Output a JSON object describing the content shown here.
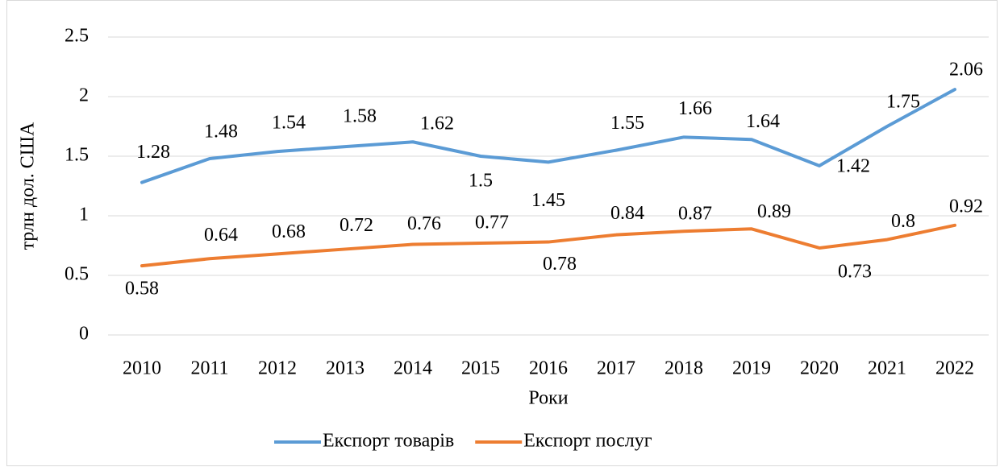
{
  "chart_data": {
    "type": "line",
    "y_label": "трлн дол. США",
    "x_label": "Роки",
    "categories": [
      "2010",
      "2011",
      "2012",
      "2013",
      "2014",
      "2015",
      "2016",
      "2017",
      "2018",
      "2019",
      "2020",
      "2021",
      "2022"
    ],
    "series": [
      {
        "name": "Експорт товарів",
        "color": "#5b9bd5",
        "values": [
          1.28,
          1.48,
          1.54,
          1.58,
          1.62,
          1.5,
          1.45,
          1.55,
          1.66,
          1.64,
          1.42,
          1.75,
          2.06
        ]
      },
      {
        "name": "Експорт послуг",
        "color": "#ed7d31",
        "values": [
          0.58,
          0.64,
          0.68,
          0.72,
          0.76,
          0.77,
          0.78,
          0.84,
          0.87,
          0.89,
          0.73,
          0.8,
          0.92
        ]
      }
    ],
    "ylim": [
      0,
      2.5
    ],
    "yticks": [
      0,
      0.5,
      1,
      1.5,
      2,
      2.5
    ],
    "grid": true,
    "legend": "bottom"
  }
}
